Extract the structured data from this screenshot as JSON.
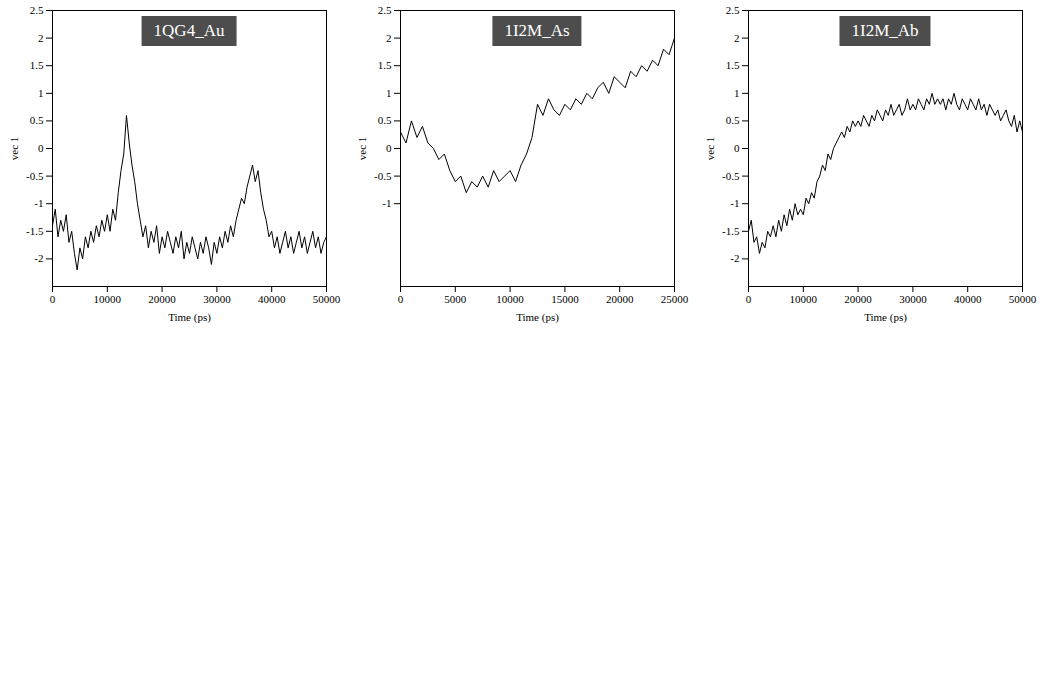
{
  "chart_data": [
    {
      "type": "line",
      "title": "1QG4_Au",
      "xlabel": "Time (ps)",
      "ylabel": "vec 1",
      "color": "#000000",
      "xlim": [
        0,
        50000
      ],
      "ylim": [
        -2.5,
        2.5
      ],
      "xticks": [
        0,
        10000,
        20000,
        30000,
        40000,
        50000
      ],
      "yticks": [
        -2,
        -1.5,
        -1,
        -0.5,
        0,
        0.5,
        1,
        1.5,
        2,
        2.5
      ],
      "x": [
        0,
        500,
        1000,
        1500,
        2000,
        2500,
        3000,
        3500,
        4000,
        4500,
        5000,
        5500,
        6000,
        6500,
        7000,
        7500,
        8000,
        8500,
        9000,
        9500,
        10000,
        10500,
        11000,
        11500,
        12000,
        12500,
        13000,
        13500,
        14000,
        14500,
        15000,
        15500,
        16000,
        16500,
        17000,
        17500,
        18000,
        18500,
        19000,
        19500,
        20000,
        20500,
        21000,
        21500,
        22000,
        22500,
        23000,
        23500,
        24000,
        24500,
        25000,
        25500,
        26000,
        26500,
        27000,
        27500,
        28000,
        28500,
        29000,
        29500,
        30000,
        30500,
        31000,
        31500,
        32000,
        32500,
        33000,
        33500,
        34000,
        34500,
        35000,
        35500,
        36000,
        36500,
        37000,
        37500,
        38000,
        38500,
        39000,
        39500,
        40000,
        40500,
        41000,
        41500,
        42000,
        42500,
        43000,
        43500,
        44000,
        44500,
        45000,
        45500,
        46000,
        46500,
        47000,
        47500,
        48000,
        48500,
        49000,
        49500,
        50000
      ],
      "values": [
        -1.4,
        -1.1,
        -1.6,
        -1.3,
        -1.5,
        -1.2,
        -1.7,
        -1.5,
        -1.9,
        -2.2,
        -1.8,
        -2.0,
        -1.6,
        -1.8,
        -1.5,
        -1.7,
        -1.4,
        -1.6,
        -1.3,
        -1.5,
        -1.2,
        -1.5,
        -1.1,
        -1.3,
        -0.8,
        -0.4,
        -0.1,
        0.6,
        0.1,
        -0.3,
        -0.6,
        -1.0,
        -1.3,
        -1.6,
        -1.4,
        -1.8,
        -1.5,
        -1.7,
        -1.4,
        -1.9,
        -1.6,
        -1.8,
        -1.5,
        -1.7,
        -1.9,
        -1.6,
        -1.8,
        -1.5,
        -2.0,
        -1.7,
        -1.9,
        -1.6,
        -1.8,
        -2.0,
        -1.7,
        -1.9,
        -1.6,
        -1.8,
        -2.1,
        -1.7,
        -1.9,
        -1.6,
        -1.8,
        -1.5,
        -1.7,
        -1.4,
        -1.6,
        -1.3,
        -1.1,
        -0.9,
        -1.0,
        -0.7,
        -0.5,
        -0.3,
        -0.6,
        -0.4,
        -0.8,
        -1.1,
        -1.3,
        -1.6,
        -1.5,
        -1.8,
        -1.6,
        -1.9,
        -1.7,
        -1.5,
        -1.8,
        -1.6,
        -1.9,
        -1.7,
        -1.5,
        -1.8,
        -1.6,
        -1.9,
        -1.7,
        -1.5,
        -1.8,
        -1.6,
        -1.9,
        -1.7,
        -1.6
      ]
    },
    {
      "type": "line",
      "title": "1I2M_As",
      "xlabel": "Time (ps)",
      "ylabel": "vec 1",
      "color": "#000000",
      "xlim": [
        0,
        25000
      ],
      "ylim": [
        -2.5,
        2.5
      ],
      "xticks": [
        0,
        5000,
        10000,
        15000,
        20000,
        25000
      ],
      "yticks": [
        -1,
        -0.5,
        0,
        0.5,
        1,
        1.5,
        2,
        2.5
      ],
      "x": [
        0,
        500,
        1000,
        1500,
        2000,
        2500,
        3000,
        3500,
        4000,
        4500,
        5000,
        5500,
        6000,
        6500,
        7000,
        7500,
        8000,
        8500,
        9000,
        9500,
        10000,
        10500,
        11000,
        11500,
        12000,
        12500,
        13000,
        13500,
        14000,
        14500,
        15000,
        15500,
        16000,
        16500,
        17000,
        17500,
        18000,
        18500,
        19000,
        19500,
        20000,
        20500,
        21000,
        21500,
        22000,
        22500,
        23000,
        23500,
        24000,
        24500,
        25000
      ],
      "values": [
        0.3,
        0.1,
        0.5,
        0.2,
        0.4,
        0.1,
        0.0,
        -0.2,
        -0.1,
        -0.4,
        -0.6,
        -0.5,
        -0.8,
        -0.6,
        -0.7,
        -0.5,
        -0.7,
        -0.4,
        -0.6,
        -0.5,
        -0.4,
        -0.6,
        -0.3,
        -0.1,
        0.2,
        0.8,
        0.6,
        0.9,
        0.7,
        0.6,
        0.8,
        0.7,
        0.9,
        0.8,
        1.0,
        0.9,
        1.1,
        1.2,
        1.0,
        1.3,
        1.2,
        1.1,
        1.4,
        1.3,
        1.5,
        1.4,
        1.6,
        1.5,
        1.8,
        1.7,
        2.0
      ]
    },
    {
      "type": "line",
      "title": "1I2M_Ab",
      "xlabel": "Time (ps)",
      "ylabel": "vec 1",
      "color": "#000000",
      "xlim": [
        0,
        50000
      ],
      "ylim": [
        -2.5,
        2.5
      ],
      "xticks": [
        0,
        10000,
        20000,
        30000,
        40000,
        50000
      ],
      "yticks": [
        -2,
        -1.5,
        -1,
        -0.5,
        0,
        0.5,
        1,
        1.5,
        2,
        2.5
      ],
      "x": [
        0,
        500,
        1000,
        1500,
        2000,
        2500,
        3000,
        3500,
        4000,
        4500,
        5000,
        5500,
        6000,
        6500,
        7000,
        7500,
        8000,
        8500,
        9000,
        9500,
        10000,
        10500,
        11000,
        11500,
        12000,
        12500,
        13000,
        13500,
        14000,
        14500,
        15000,
        15500,
        16000,
        16500,
        17000,
        17500,
        18000,
        18500,
        19000,
        19500,
        20000,
        20500,
        21000,
        21500,
        22000,
        22500,
        23000,
        23500,
        24000,
        24500,
        25000,
        25500,
        26000,
        26500,
        27000,
        27500,
        28000,
        28500,
        29000,
        29500,
        30000,
        30500,
        31000,
        31500,
        32000,
        32500,
        33000,
        33500,
        34000,
        34500,
        35000,
        35500,
        36000,
        36500,
        37000,
        37500,
        38000,
        38500,
        39000,
        39500,
        40000,
        40500,
        41000,
        41500,
        42000,
        42500,
        43000,
        43500,
        44000,
        44500,
        45000,
        45500,
        46000,
        46500,
        47000,
        47500,
        48000,
        48500,
        49000,
        49500,
        50000
      ],
      "values": [
        -1.5,
        -1.3,
        -1.7,
        -1.6,
        -1.9,
        -1.7,
        -1.8,
        -1.5,
        -1.6,
        -1.4,
        -1.6,
        -1.3,
        -1.5,
        -1.2,
        -1.4,
        -1.1,
        -1.3,
        -1.0,
        -1.2,
        -1.1,
        -1.2,
        -0.9,
        -1.0,
        -0.8,
        -0.9,
        -0.6,
        -0.5,
        -0.3,
        -0.4,
        -0.1,
        -0.2,
        0.0,
        0.1,
        0.2,
        0.3,
        0.2,
        0.4,
        0.3,
        0.5,
        0.4,
        0.5,
        0.4,
        0.6,
        0.5,
        0.4,
        0.6,
        0.5,
        0.7,
        0.6,
        0.5,
        0.7,
        0.6,
        0.8,
        0.6,
        0.7,
        0.8,
        0.6,
        0.7,
        0.9,
        0.7,
        0.8,
        0.7,
        0.9,
        0.8,
        0.7,
        0.9,
        0.8,
        1.0,
        0.8,
        0.9,
        0.8,
        0.9,
        0.7,
        0.9,
        0.8,
        1.0,
        0.8,
        0.7,
        0.9,
        0.8,
        0.7,
        0.9,
        0.8,
        0.7,
        0.9,
        0.7,
        0.8,
        0.6,
        0.8,
        0.7,
        0.6,
        0.7,
        0.5,
        0.6,
        0.7,
        0.5,
        0.4,
        0.6,
        0.3,
        0.5,
        0.3
      ]
    }
  ]
}
